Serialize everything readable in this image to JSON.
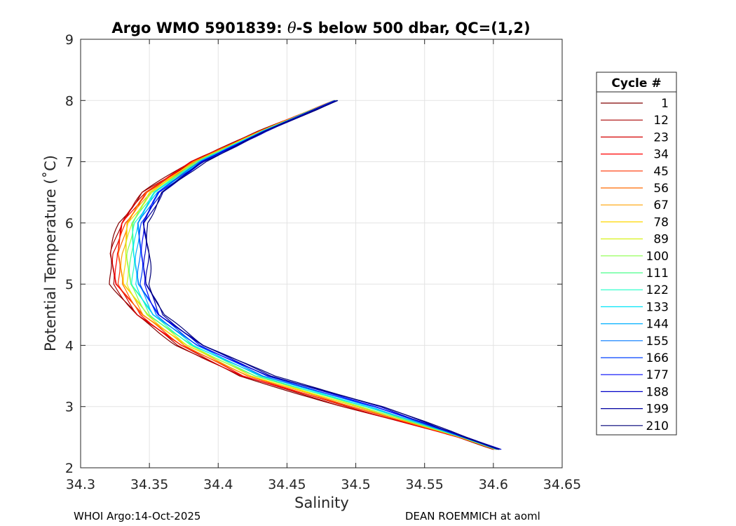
{
  "chart_data": {
    "type": "line",
    "title_pre": "Argo WMO 5901839: ",
    "title_theta": "θ",
    "title_post": "-S below 500 dbar,  QC=(1,2)",
    "xlabel": "Salinity",
    "ylabel": "Potential Temperature (˚C)",
    "xlim": [
      34.3,
      34.65
    ],
    "ylim": [
      2,
      9
    ],
    "xticks": [
      "34.3",
      "34.35",
      "34.4",
      "34.45",
      "34.5",
      "34.55",
      "34.6",
      "34.65"
    ],
    "yticks": [
      "2",
      "3",
      "4",
      "5",
      "6",
      "7",
      "8",
      "9"
    ],
    "grid": true,
    "legend_title": "Cycle #",
    "legend_position": "outside-right",
    "colormap": "jet",
    "series": [
      {
        "name": "1",
        "color": "#800000"
      },
      {
        "name": "12",
        "color": "#a80000"
      },
      {
        "name": "23",
        "color": "#d40000"
      },
      {
        "name": "34",
        "color": "#ff0000"
      },
      {
        "name": "45",
        "color": "#ff3300"
      },
      {
        "name": "56",
        "color": "#ff6a00"
      },
      {
        "name": "67",
        "color": "#ffa200"
      },
      {
        "name": "78",
        "color": "#ffd800"
      },
      {
        "name": "89",
        "color": "#d8f21c"
      },
      {
        "name": "100",
        "color": "#8bff4b"
      },
      {
        "name": "111",
        "color": "#4bff8b"
      },
      {
        "name": "122",
        "color": "#1cffc6"
      },
      {
        "name": "133",
        "color": "#00e4f8"
      },
      {
        "name": "144",
        "color": "#00b0ff"
      },
      {
        "name": "155",
        "color": "#0078ff"
      },
      {
        "name": "166",
        "color": "#0040ff"
      },
      {
        "name": "177",
        "color": "#0008f8"
      },
      {
        "name": "188",
        "color": "#0000c8"
      },
      {
        "name": "199",
        "color": "#0000a0"
      },
      {
        "name": "210",
        "color": "#000078"
      }
    ],
    "profile_envelope": {
      "theta": [
        2.3,
        2.5,
        3.0,
        3.5,
        4.0,
        4.5,
        5.0,
        5.5,
        6.0,
        6.5,
        7.0,
        7.5,
        8.0
      ],
      "salinity_fresh_side": [
        34.601,
        34.575,
        34.49,
        34.415,
        34.37,
        34.34,
        34.322,
        34.321,
        34.328,
        34.345,
        34.38,
        34.43,
        34.485
      ],
      "salinity_salty_side": [
        34.605,
        34.58,
        34.52,
        34.44,
        34.39,
        34.36,
        34.35,
        34.35,
        34.348,
        34.36,
        34.39,
        34.435,
        34.486
      ]
    }
  },
  "footer": {
    "left": "WHOI Argo:14-Oct-2025",
    "right": "DEAN ROEMMICH at aoml"
  }
}
